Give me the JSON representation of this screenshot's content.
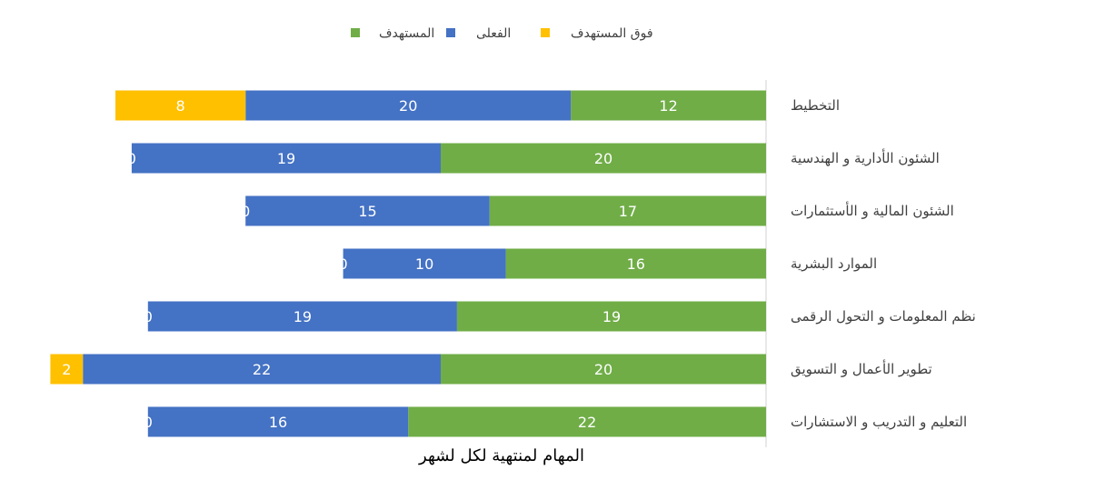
{
  "chart_data": {
    "type": "bar",
    "orientation": "horizontal-stacked-rtl",
    "categories": [
      "التخطيط",
      "الشئون الأدارية و الهندسية",
      "الشئون المالية و الأستثمارات",
      "الموارد البشرية",
      "نظم المعلومات و التحول الرقمى",
      "تطوير الأعمال و التسويق",
      "التعليم و التدريب و الاستشارات"
    ],
    "series": [
      {
        "name": "المستهدف",
        "color": "#70ad47",
        "values": [
          12,
          20,
          17,
          16,
          19,
          20,
          22
        ]
      },
      {
        "name": "الفعلى",
        "color": "#4472c4",
        "values": [
          20,
          19,
          15,
          10,
          19,
          22,
          16
        ]
      },
      {
        "name": "فوق المستهدف",
        "color": "#ffc000",
        "values": [
          8,
          0,
          0,
          0,
          0,
          2,
          0
        ]
      }
    ],
    "legend_order": [
      2,
      1,
      0
    ],
    "legend_position": "top",
    "xlim": [
      0,
      44
    ],
    "grid": false,
    "title": "",
    "caption": "المهام لمنتهية لكل لشهر"
  }
}
